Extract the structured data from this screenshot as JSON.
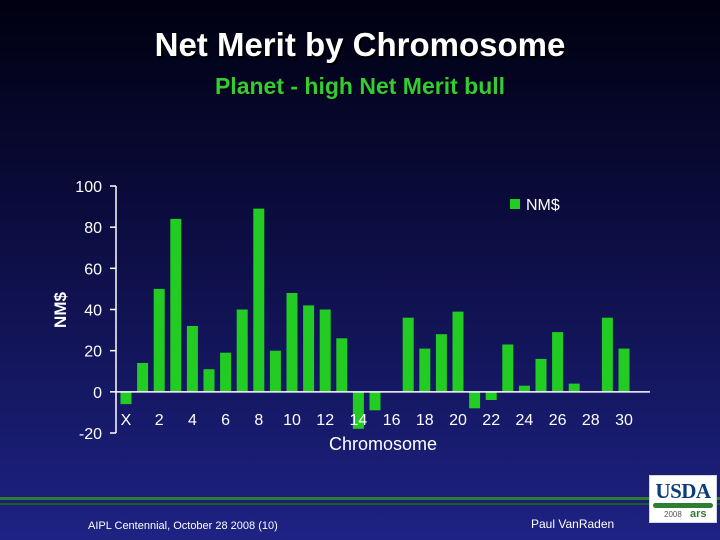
{
  "slide": {
    "title": "Net Merit by Chromosome",
    "subtitle": "Planet - high Net Merit bull"
  },
  "footer": {
    "left": "AIPL Centennial, October 28 2008 (10)",
    "right": "Paul VanRaden"
  },
  "logo": {
    "text": "USDA",
    "year": "2008",
    "mark": "ars"
  },
  "colors": {
    "bar": "#22cc22",
    "axis": "#ffffff",
    "text": "#ffffff"
  },
  "chart_data": {
    "type": "bar",
    "xlabel": "Chromosome",
    "ylabel": "NM$",
    "ylim": [
      -20,
      100
    ],
    "yticks": [
      "100",
      "80",
      "60",
      "40",
      "20",
      "0",
      "-20"
    ],
    "ytick_values": [
      100,
      80,
      60,
      40,
      20,
      0,
      -20
    ],
    "xtick_labels": [
      "X",
      "2",
      "4",
      "6",
      "8",
      "10",
      "12",
      "14",
      "16",
      "18",
      "20",
      "22",
      "24",
      "26",
      "28",
      "30"
    ],
    "categories": [
      "X",
      "1",
      "2",
      "3",
      "4",
      "5",
      "6",
      "7",
      "8",
      "9",
      "10",
      "11",
      "12",
      "13",
      "14",
      "15",
      "16",
      "17",
      "18",
      "19",
      "20",
      "21",
      "22",
      "23",
      "24",
      "25",
      "26",
      "27",
      "28",
      "29",
      "30"
    ],
    "legend": {
      "labels": [
        "NM$"
      ],
      "position": "top-right"
    },
    "series": [
      {
        "name": "NM$",
        "values": [
          -6,
          14,
          50,
          84,
          32,
          11,
          19,
          40,
          89,
          20,
          48,
          42,
          40,
          26,
          -18,
          -9,
          0,
          36,
          21,
          28,
          39,
          -8,
          -4,
          23,
          3,
          16,
          29,
          4,
          0,
          36,
          21
        ]
      }
    ]
  }
}
